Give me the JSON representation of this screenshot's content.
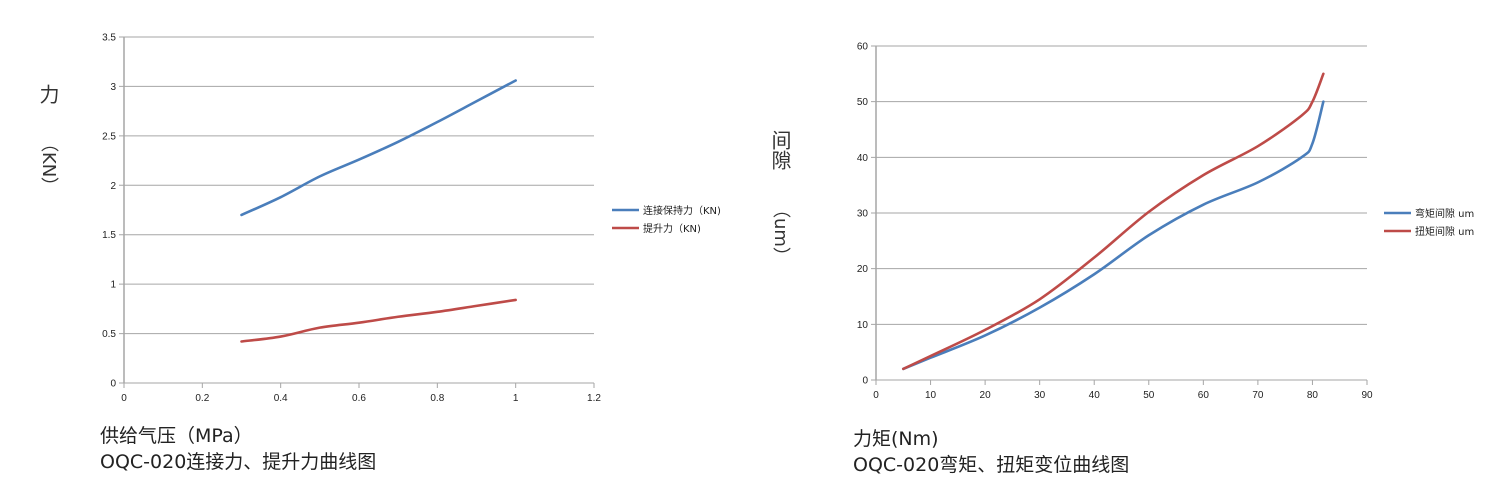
{
  "colors": {
    "series_blue": "#4a7ebb",
    "series_red": "#be4b48",
    "gridline": "#a6a6a6",
    "axis": "#a6a6a6"
  },
  "left_chart": {
    "ylabel_char": "力",
    "ylabel_unit": "（KN）",
    "xlabel": "供给气压（MPa）",
    "title": "OQC-020连接力、提升力曲线图",
    "legend": [
      "连接保持力（KN)",
      "提升力（KN)"
    ]
  },
  "right_chart": {
    "ylabel_chars": "间隙",
    "ylabel_unit": "（um）",
    "xlabel": "力矩(Nm)",
    "title": "OQC-020弯矩、扭矩变位曲线图",
    "legend": [
      "弯矩间隙 um",
      "扭矩间隙 um"
    ]
  },
  "chart_data": [
    {
      "type": "line",
      "title": "OQC-020连接力、提升力曲线图",
      "xlabel": "供给气压（MPa）",
      "ylabel": "力（KN）",
      "xlim": [
        0,
        1.2
      ],
      "ylim": [
        0,
        3.5
      ],
      "xticks": [
        "0",
        "0.2",
        "0.4",
        "0.6",
        "0.8",
        "1",
        "1.2"
      ],
      "yticks": [
        "0",
        "0.5",
        "1",
        "1.5",
        "2",
        "2.5",
        "3",
        "3.5"
      ],
      "grid": "horizontal",
      "legend_position": "right",
      "x": [
        0.3,
        0.4,
        0.5,
        0.6,
        0.7,
        0.8,
        0.9,
        1.0
      ],
      "series": [
        {
          "name": "连接保持力（KN)",
          "color": "#4a7ebb",
          "values": [
            1.7,
            1.88,
            2.09,
            2.26,
            2.44,
            2.64,
            2.85,
            3.06
          ]
        },
        {
          "name": "提升力（KN)",
          "color": "#be4b48",
          "values": [
            0.42,
            0.47,
            0.56,
            0.61,
            0.67,
            0.72,
            0.78,
            0.84
          ]
        }
      ]
    },
    {
      "type": "line",
      "title": "OQC-020弯矩、扭矩变位曲线图",
      "xlabel": "力矩(Nm)",
      "ylabel": "间隙（um）",
      "xlim": [
        0,
        90
      ],
      "ylim": [
        0,
        60
      ],
      "xticks": [
        "0",
        "10",
        "20",
        "30",
        "40",
        "50",
        "60",
        "70",
        "80",
        "90"
      ],
      "yticks": [
        "0",
        "10",
        "20",
        "30",
        "40",
        "50",
        "60"
      ],
      "grid": "horizontal",
      "legend_position": "right",
      "x": [
        5,
        10,
        20,
        30,
        40,
        50,
        60,
        70,
        78,
        80,
        82
      ],
      "series": [
        {
          "name": "弯矩间隙 um",
          "color": "#4a7ebb",
          "values": [
            2,
            4,
            8,
            13,
            19,
            26,
            31.5,
            35.5,
            40,
            42.5,
            50
          ]
        },
        {
          "name": "扭矩间隙 um",
          "color": "#be4b48",
          "values": [
            2,
            4.3,
            9,
            14.5,
            22,
            30.2,
            36.8,
            42,
            47.5,
            50,
            55
          ]
        }
      ]
    }
  ]
}
